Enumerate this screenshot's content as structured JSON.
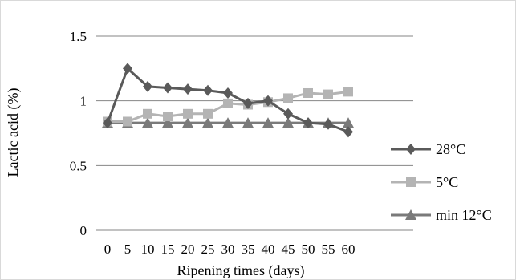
{
  "chart_data": {
    "type": "line",
    "title": "",
    "xlabel": "Ripening times (days)",
    "ylabel": "Lactic acid (%)",
    "categories": [
      "0",
      "5",
      "10",
      "15",
      "20",
      "25",
      "30",
      "35",
      "40",
      "45",
      "50",
      "55",
      "60"
    ],
    "ylim": [
      0,
      1.5
    ],
    "yticks": [
      "0",
      "0.5",
      "1",
      "1.5"
    ],
    "grid": true,
    "legend_position": "right",
    "series": [
      {
        "name": "28°C",
        "color": "#5a5a5a",
        "marker": "diamond",
        "values": [
          0.83,
          1.25,
          1.11,
          1.1,
          1.09,
          1.08,
          1.06,
          0.98,
          1.0,
          0.9,
          0.83,
          0.82,
          0.76
        ]
      },
      {
        "name": "5°C",
        "color": "#b4b4b4",
        "marker": "square",
        "values": [
          0.84,
          0.84,
          0.9,
          0.88,
          0.9,
          0.9,
          0.98,
          0.97,
          0.99,
          1.02,
          1.06,
          1.05,
          1.07
        ]
      },
      {
        "name": "min 12°C",
        "color": "#7a7a7a",
        "marker": "triangle",
        "values": [
          0.83,
          0.83,
          0.83,
          0.83,
          0.83,
          0.83,
          0.83,
          0.83,
          0.83,
          0.83,
          0.83,
          0.83,
          0.83
        ]
      }
    ]
  }
}
